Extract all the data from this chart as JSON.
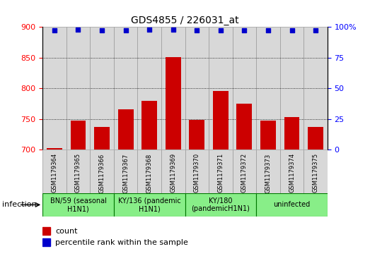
{
  "title": "GDS4855 / 226031_at",
  "samples": [
    "GSM1179364",
    "GSM1179365",
    "GSM1179366",
    "GSM1179367",
    "GSM1179368",
    "GSM1179369",
    "GSM1179370",
    "GSM1179371",
    "GSM1179372",
    "GSM1179373",
    "GSM1179374",
    "GSM1179375"
  ],
  "counts": [
    703,
    748,
    737,
    766,
    780,
    851,
    749,
    796,
    775,
    747,
    753,
    737
  ],
  "percentile_ranks": [
    97,
    98,
    97,
    97,
    98,
    98,
    97,
    97,
    97,
    97,
    97,
    97
  ],
  "bar_color": "#cc0000",
  "dot_color": "#0000cc",
  "col_bg_color": "#d8d8d8",
  "col_border_color": "#999999",
  "group_bg_color": "#88ee88",
  "group_border_color": "#007700",
  "ylim_left": [
    700,
    900
  ],
  "ylim_right": [
    0,
    100
  ],
  "yticks_left": [
    700,
    750,
    800,
    850,
    900
  ],
  "yticks_right": [
    0,
    25,
    50,
    75,
    100
  ],
  "grid_values": [
    750,
    800,
    850
  ],
  "groups": [
    {
      "label": "BN/59 (seasonal\nH1N1)",
      "start": 0,
      "end": 3
    },
    {
      "label": "KY/136 (pandemic\nH1N1)",
      "start": 3,
      "end": 6
    },
    {
      "label": "KY/180\n(pandemicH1N1)",
      "start": 6,
      "end": 9
    },
    {
      "label": "uninfected",
      "start": 9,
      "end": 12
    }
  ],
  "infection_label": "infection",
  "legend_count_label": "count",
  "legend_percentile_label": "percentile rank within the sample"
}
